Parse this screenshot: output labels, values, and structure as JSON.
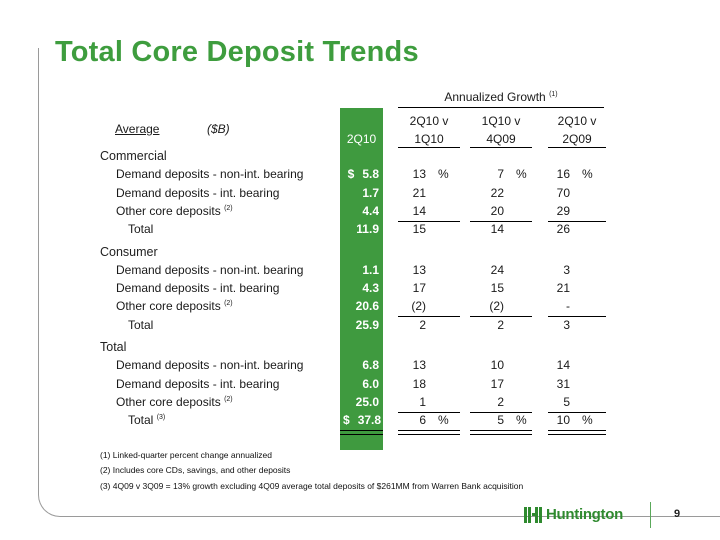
{
  "title": "Total Core Deposit Trends",
  "annualized_header": "Annualized Growth",
  "annualized_note_ref": "(1)",
  "header": {
    "average": "Average",
    "unit": "($B)",
    "col1_top": "",
    "col1_bottom": "2Q10",
    "col2_top": "2Q10 v",
    "col2_bottom": "1Q10",
    "col3_top": "1Q10 v",
    "col3_bottom": "4Q09",
    "col4_top": "2Q10 v",
    "col4_bottom": "2Q09"
  },
  "sections": [
    {
      "name": "Commercial",
      "rows": [
        {
          "label": "Demand deposits - non-int. bearing",
          "ref": "",
          "dollar": "$",
          "level": "5.8",
          "g1": "13",
          "g1p": "%",
          "g2": "7",
          "g2p": "%",
          "g3": "16",
          "g3p": "%"
        },
        {
          "label": "Demand deposits - int. bearing",
          "ref": "",
          "dollar": "",
          "level": "1.7",
          "g1": "21",
          "g1p": "",
          "g2": "22",
          "g2p": "",
          "g3": "70",
          "g3p": ""
        },
        {
          "label": "Other core deposits",
          "ref": "(2)",
          "dollar": "",
          "level": "4.4",
          "g1": "14",
          "g1p": "",
          "g2": "20",
          "g2p": "",
          "g3": "29",
          "g3p": ""
        },
        {
          "label": "Total",
          "ref": "",
          "dollar": "",
          "level": "11.9",
          "g1": "15",
          "g1p": "",
          "g2": "14",
          "g2p": "",
          "g3": "26",
          "g3p": ""
        }
      ]
    },
    {
      "name": "Consumer",
      "rows": [
        {
          "label": "Demand deposits - non-int. bearing",
          "ref": "",
          "dollar": "",
          "level": "1.1",
          "g1": "13",
          "g1p": "",
          "g2": "24",
          "g2p": "",
          "g3": "3",
          "g3p": ""
        },
        {
          "label": "Demand deposits - int. bearing",
          "ref": "",
          "dollar": "",
          "level": "4.3",
          "g1": "17",
          "g1p": "",
          "g2": "15",
          "g2p": "",
          "g3": "21",
          "g3p": ""
        },
        {
          "label": "Other core deposits",
          "ref": "(2)",
          "dollar": "",
          "level": "20.6",
          "g1": "(2)",
          "g1p": "",
          "g2": "(2)",
          "g2p": "",
          "g3": "-",
          "g3p": ""
        },
        {
          "label": "Total",
          "ref": "",
          "dollar": "",
          "level": "25.9",
          "g1": "2",
          "g1p": "",
          "g2": "2",
          "g2p": "",
          "g3": "3",
          "g3p": ""
        }
      ]
    },
    {
      "name": "Total",
      "rows": [
        {
          "label": "Demand deposits - non-int. bearing",
          "ref": "",
          "dollar": "",
          "level": "6.8",
          "g1": "13",
          "g1p": "",
          "g2": "10",
          "g2p": "",
          "g3": "14",
          "g3p": ""
        },
        {
          "label": "Demand deposits - int. bearing",
          "ref": "",
          "dollar": "",
          "level": "6.0",
          "g1": "18",
          "g1p": "",
          "g2": "17",
          "g2p": "",
          "g3": "31",
          "g3p": ""
        },
        {
          "label": "Other core deposits",
          "ref": "(2)",
          "dollar": "",
          "level": "25.0",
          "g1": "1",
          "g1p": "",
          "g2": "2",
          "g2p": "",
          "g3": "5",
          "g3p": ""
        },
        {
          "label": "Total",
          "ref": "(3)",
          "dollar": "$",
          "level": "37.8",
          "g1": "6",
          "g1p": "%",
          "g2": "5",
          "g2p": "%",
          "g3": "10",
          "g3p": "%"
        }
      ]
    }
  ],
  "footnotes": [
    "(1) Linked-quarter percent change annualized",
    "(2) Includes core CDs, savings, and other deposits",
    "(3) 4Q09 v 3Q09 = 13% growth excluding 4Q09 average total deposits of $261MM from Warren Bank acquisition"
  ],
  "logo_text": "Huntington",
  "page_number": "9",
  "colors": {
    "title_green": "#3e9d3e",
    "column_green": "#3f9a3f",
    "logo_green": "#2f8a2f"
  }
}
